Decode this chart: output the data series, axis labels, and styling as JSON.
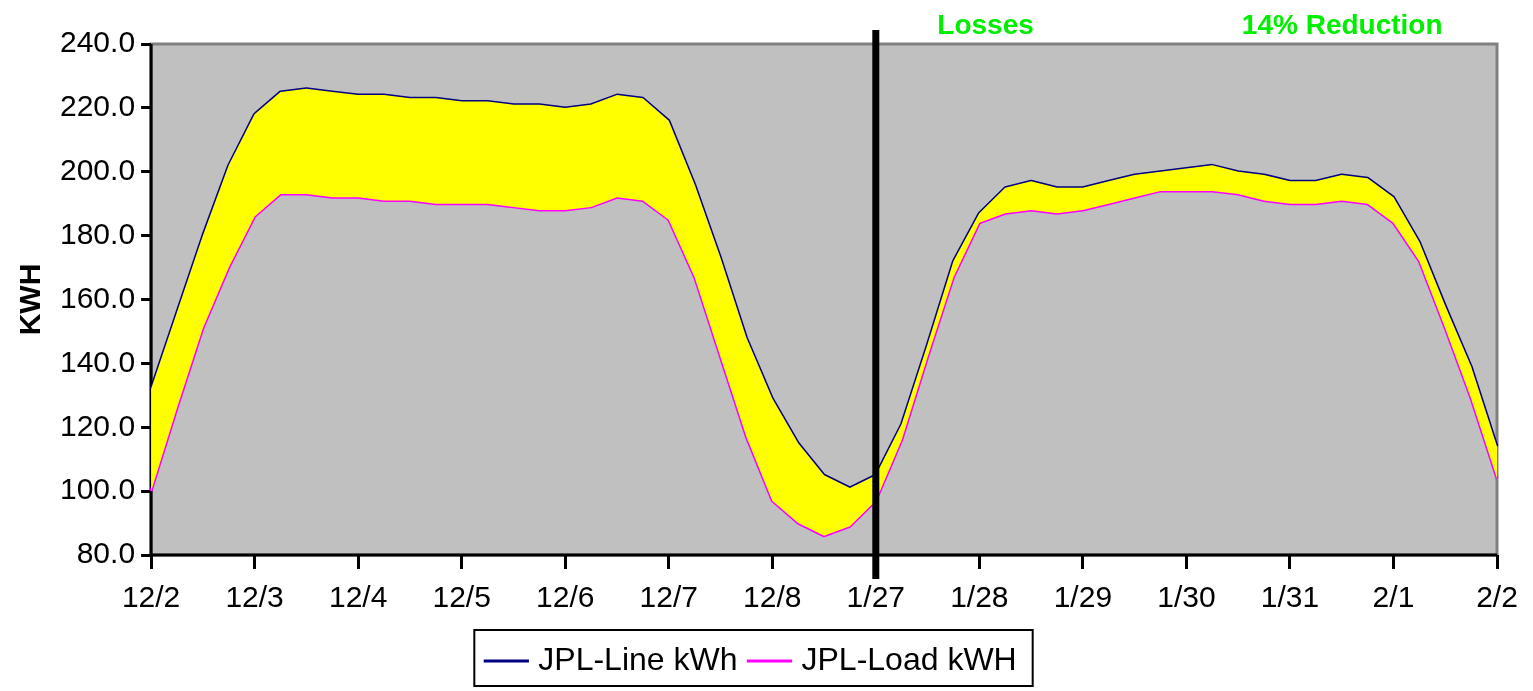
{
  "chart_data": {
    "type": "line",
    "ylabel": "KWH",
    "annotations": [
      "Losses",
      "14% Reduction"
    ],
    "categories": [
      "12/2",
      null,
      null,
      null,
      "12/3",
      null,
      null,
      null,
      "12/4",
      null,
      null,
      null,
      "12/5",
      null,
      null,
      null,
      "12/6",
      null,
      null,
      null,
      "12/7",
      null,
      null,
      null,
      "12/8",
      null,
      null,
      null,
      "1/27",
      null,
      null,
      null,
      "1/28",
      null,
      null,
      null,
      "1/29",
      null,
      null,
      null,
      "1/30",
      null,
      null,
      null,
      "1/31",
      null,
      null,
      null,
      "2/1",
      null,
      null,
      null,
      "2/2"
    ],
    "ylim": [
      80,
      240
    ],
    "yticks": [
      {
        "value": 80,
        "label": "80.0"
      },
      {
        "value": 100,
        "label": "100.0"
      },
      {
        "value": 120,
        "label": "120.0"
      },
      {
        "value": 140,
        "label": "140.0"
      },
      {
        "value": 160,
        "label": "160.0"
      },
      {
        "value": 180,
        "label": "180.0"
      },
      {
        "value": 200,
        "label": "200.0"
      },
      {
        "value": 220,
        "label": "220.0"
      },
      {
        "value": 240,
        "label": "240.0"
      }
    ],
    "ref_lines": [
      {
        "axis": "x",
        "value": "1/27",
        "color": "#000000"
      }
    ],
    "grid": false,
    "legend": "bottom",
    "marker": "none",
    "line_style": "solid",
    "series": [
      {
        "name": "JPL-Line kWh",
        "color": "#000080",
        "values": [
          132,
          156,
          180,
          202,
          218,
          225,
          226,
          225,
          224,
          224,
          223,
          223,
          222,
          222,
          221,
          221,
          220,
          221,
          224,
          223,
          216,
          196,
          173,
          148,
          129,
          115,
          105,
          101,
          105,
          121,
          146,
          172,
          187,
          195,
          197,
          195,
          195,
          197,
          199,
          200,
          201,
          202,
          200,
          199,
          197,
          197,
          199,
          198,
          192,
          178,
          158,
          139,
          114
        ],
        "upper": [
          132,
          156,
          180,
          202,
          218,
          225,
          226,
          225,
          224,
          224,
          223,
          223,
          222,
          222,
          221,
          221,
          220,
          221,
          224,
          223,
          216,
          196,
          173,
          148,
          129,
          115,
          105,
          101,
          105,
          121,
          146,
          172,
          187,
          195,
          197,
          195,
          195,
          197,
          199,
          200,
          201,
          202,
          200,
          199,
          197,
          197,
          199,
          198,
          192,
          178,
          158,
          139,
          114
        ],
        "lower": [
          100,
          126,
          151,
          170,
          186,
          193,
          193,
          192,
          192,
          191,
          191,
          190,
          190,
          190,
          189,
          188,
          188,
          189,
          192,
          191,
          185,
          167,
          142,
          117,
          97,
          90,
          86,
          89,
          97,
          116,
          142,
          167,
          184,
          187,
          188,
          187,
          188,
          190,
          192,
          194,
          194,
          194,
          193,
          191,
          190,
          190,
          191,
          190,
          184,
          172,
          151,
          129,
          104
        ]
      },
      {
        "name": "JPL-Load kWH",
        "color": "#ff00ff",
        "values": [
          100,
          126,
          151,
          170,
          186,
          193,
          193,
          192,
          192,
          191,
          191,
          190,
          190,
          190,
          189,
          188,
          188,
          189,
          192,
          191,
          185,
          167,
          142,
          117,
          97,
          90,
          86,
          89,
          97,
          116,
          142,
          167,
          184,
          187,
          188,
          187,
          188,
          190,
          192,
          194,
          194,
          194,
          193,
          191,
          190,
          190,
          191,
          190,
          184,
          172,
          151,
          129,
          104
        ]
      }
    ]
  }
}
